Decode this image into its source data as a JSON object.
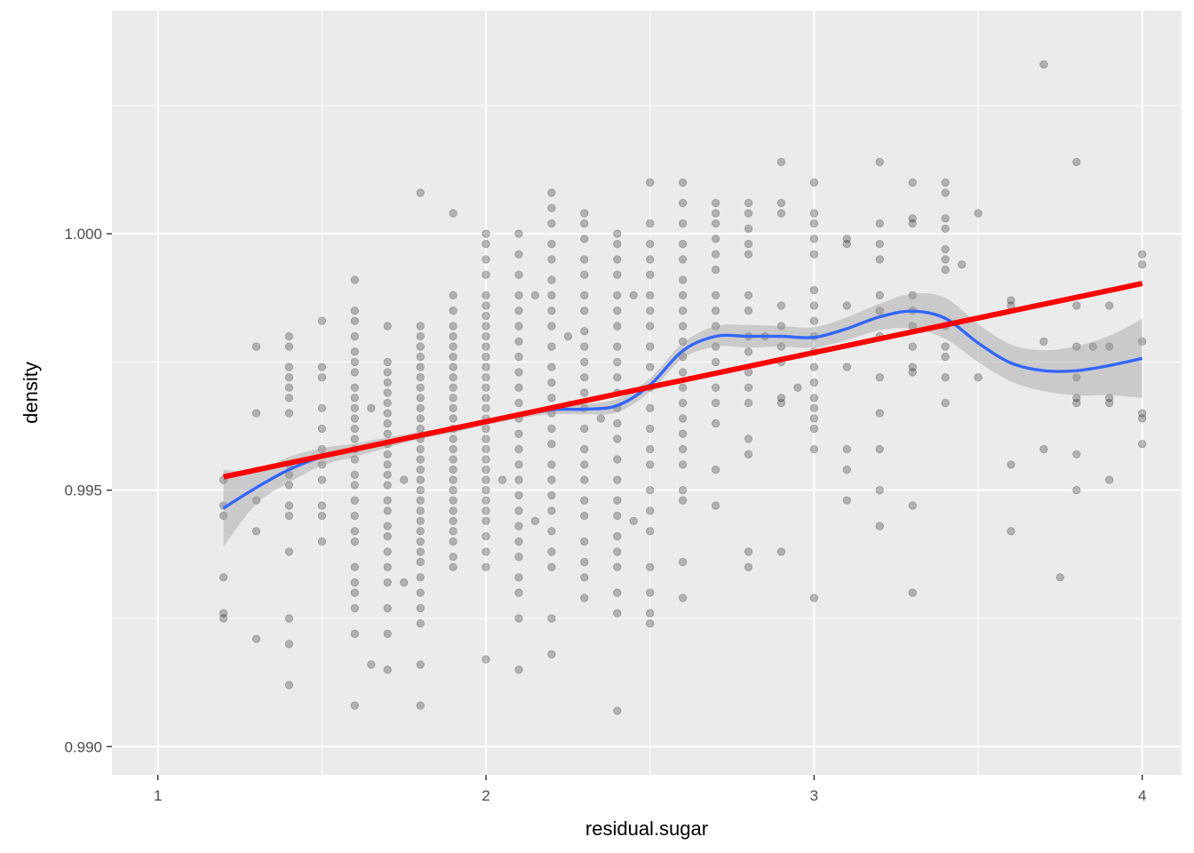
{
  "chart_data": {
    "type": "scatter",
    "title": "",
    "xlabel": "residual.sugar",
    "ylabel": "density",
    "xlim": [
      0.86,
      4.12
    ],
    "ylim": [
      0.98945,
      1.00435
    ],
    "x_ticks": [
      1,
      2,
      3,
      4
    ],
    "x_tick_labels": [
      "1",
      "2",
      "3",
      "4"
    ],
    "y_ticks": [
      0.99,
      0.995,
      1.0
    ],
    "y_tick_labels": [
      "0.990",
      "0.995",
      "1.000"
    ],
    "x_minor": [
      1.5,
      2.5,
      3.5
    ],
    "y_minor": [
      0.9925,
      0.9975,
      1.0025
    ],
    "grid": true,
    "legend": "none",
    "colors": {
      "panel": "#EBEBEB",
      "grid": "#FFFFFF",
      "points": "#000000",
      "loess": "#3366FF",
      "band": "#999999",
      "linear": "#FF0000"
    },
    "series": [
      {
        "kind": "points",
        "point_alpha": 0.25,
        "columns": [
          {
            "x": 1.2,
            "y": [
              0.9952,
              0.9947,
              0.9945,
              0.9933,
              0.9926,
              0.9925
            ]
          },
          {
            "x": 1.3,
            "y": [
              0.9978,
              0.9965,
              0.9948,
              0.9942,
              0.9921
            ]
          },
          {
            "x": 1.4,
            "y": [
              0.998,
              0.9978,
              0.9974,
              0.9972,
              0.997,
              0.9968,
              0.9965,
              0.9955,
              0.9953,
              0.9951,
              0.9947,
              0.9945,
              0.9938,
              0.9925,
              0.992,
              0.9912
            ]
          },
          {
            "x": 1.5,
            "y": [
              0.9983,
              0.9974,
              0.9972,
              0.9966,
              0.9962,
              0.9958,
              0.9955,
              0.9952,
              0.9947,
              0.9945,
              0.994
            ]
          },
          {
            "x": 1.6,
            "y": [
              0.9991,
              0.9985,
              0.9983,
              0.998,
              0.9977,
              0.9975,
              0.9973,
              0.997,
              0.9968,
              0.9966,
              0.9964,
              0.9962,
              0.996,
              0.9958,
              0.9956,
              0.9953,
              0.9951,
              0.9948,
              0.9945,
              0.9942,
              0.994,
              0.9935,
              0.9932,
              0.993,
              0.9927,
              0.9922,
              0.9908
            ]
          },
          {
            "x": 1.65,
            "y": [
              0.9966,
              0.9916
            ]
          },
          {
            "x": 1.7,
            "y": [
              0.9982,
              0.9975,
              0.9973,
              0.9971,
              0.9969,
              0.9967,
              0.9965,
              0.9963,
              0.9961,
              0.9959,
              0.9957,
              0.9955,
              0.9953,
              0.9951,
              0.9948,
              0.9946,
              0.9943,
              0.9941,
              0.9938,
              0.9935,
              0.9932,
              0.9927,
              0.9922,
              0.9915
            ]
          },
          {
            "x": 1.75,
            "y": [
              0.9952,
              0.9932
            ]
          },
          {
            "x": 1.8,
            "y": [
              1.0008,
              0.9982,
              0.998,
              0.9978,
              0.9976,
              0.9974,
              0.9972,
              0.997,
              0.9968,
              0.9966,
              0.9964,
              0.9962,
              0.996,
              0.9958,
              0.9956,
              0.9954,
              0.9952,
              0.995,
              0.9948,
              0.9946,
              0.9944,
              0.9942,
              0.994,
              0.9938,
              0.9936,
              0.9933,
              0.993,
              0.9927,
              0.9924,
              0.9916,
              0.9908
            ]
          },
          {
            "x": 1.9,
            "y": [
              1.0004,
              0.9988,
              0.9985,
              0.9982,
              0.998,
              0.9978,
              0.9976,
              0.9974,
              0.9972,
              0.997,
              0.9968,
              0.9966,
              0.9964,
              0.9962,
              0.996,
              0.9958,
              0.9956,
              0.9954,
              0.9952,
              0.995,
              0.9948,
              0.9946,
              0.9944,
              0.9942,
              0.994,
              0.9937,
              0.9935
            ]
          },
          {
            "x": 2.0,
            "y": [
              1.0,
              0.9998,
              0.9995,
              0.9992,
              0.9988,
              0.9986,
              0.9984,
              0.9982,
              0.998,
              0.9978,
              0.9976,
              0.9974,
              0.9972,
              0.997,
              0.9968,
              0.9966,
              0.9964,
              0.9962,
              0.996,
              0.9958,
              0.9956,
              0.9954,
              0.9952,
              0.995,
              0.9948,
              0.9946,
              0.9944,
              0.9941,
              0.9938,
              0.9935,
              0.9917
            ]
          },
          {
            "x": 2.05,
            "y": [
              0.9952
            ]
          },
          {
            "x": 2.1,
            "y": [
              1.0,
              0.9996,
              0.9992,
              0.9988,
              0.9985,
              0.9982,
              0.9979,
              0.9976,
              0.9973,
              0.997,
              0.9967,
              0.9964,
              0.9961,
              0.9958,
              0.9955,
              0.9952,
              0.9949,
              0.9946,
              0.9943,
              0.994,
              0.9937,
              0.9933,
              0.993,
              0.9925,
              0.9915
            ]
          },
          {
            "x": 2.15,
            "y": [
              0.9988,
              0.9944
            ]
          },
          {
            "x": 2.2,
            "y": [
              1.0008,
              1.0005,
              1.0002,
              0.9998,
              0.9995,
              0.9991,
              0.9988,
              0.9985,
              0.9982,
              0.9978,
              0.9974,
              0.9971,
              0.9968,
              0.9965,
              0.9962,
              0.9959,
              0.9955,
              0.9952,
              0.9949,
              0.9946,
              0.9942,
              0.9938,
              0.9935,
              0.9925,
              0.9918
            ]
          },
          {
            "x": 2.25,
            "y": [
              0.998
            ]
          },
          {
            "x": 2.3,
            "y": [
              1.0004,
              1.0002,
              0.9999,
              0.9995,
              0.9992,
              0.9988,
              0.9985,
              0.9981,
              0.9978,
              0.9975,
              0.9972,
              0.9969,
              0.9966,
              0.9962,
              0.9958,
              0.9955,
              0.9952,
              0.9948,
              0.9945,
              0.994,
              0.9936,
              0.9933,
              0.9929
            ]
          },
          {
            "x": 2.35,
            "y": [
              0.9964
            ]
          },
          {
            "x": 2.4,
            "y": [
              1.0,
              0.9998,
              0.9995,
              0.9992,
              0.9988,
              0.9985,
              0.9982,
              0.9978,
              0.9975,
              0.9972,
              0.9969,
              0.9966,
              0.9963,
              0.996,
              0.9956,
              0.9952,
              0.9948,
              0.9945,
              0.9941,
              0.9938,
              0.9935,
              0.993,
              0.9926,
              0.9907
            ]
          },
          {
            "x": 2.45,
            "y": [
              0.9988,
              0.9944
            ]
          },
          {
            "x": 2.5,
            "y": [
              1.001,
              1.0002,
              0.9998,
              0.9995,
              0.9992,
              0.9988,
              0.9985,
              0.9982,
              0.9978,
              0.9974,
              0.997,
              0.9966,
              0.9962,
              0.9958,
              0.9955,
              0.995,
              0.9946,
              0.9942,
              0.9935,
              0.993,
              0.9926,
              0.9924
            ]
          },
          {
            "x": 2.6,
            "y": [
              1.001,
              1.0006,
              1.0002,
              0.9998,
              0.9995,
              0.9991,
              0.9988,
              0.9985,
              0.9982,
              0.9979,
              0.9976,
              0.9973,
              0.997,
              0.9967,
              0.9964,
              0.9961,
              0.9958,
              0.9955,
              0.995,
              0.9948,
              0.9936,
              0.9929
            ]
          },
          {
            "x": 2.7,
            "y": [
              1.0006,
              1.0004,
              1.0002,
              0.9999,
              0.9996,
              0.9993,
              0.9988,
              0.9985,
              0.9982,
              0.9978,
              0.9975,
              0.997,
              0.9967,
              0.9963,
              0.9954,
              0.9947
            ]
          },
          {
            "x": 2.8,
            "y": [
              1.0006,
              1.0004,
              1.0001,
              0.9998,
              0.9996,
              0.9988,
              0.9985,
              0.998,
              0.9977,
              0.9973,
              0.997,
              0.9967,
              0.996,
              0.9957,
              0.9938,
              0.9935
            ]
          },
          {
            "x": 2.85,
            "y": [
              0.998
            ]
          },
          {
            "x": 2.9,
            "y": [
              1.0014,
              1.0006,
              1.0004,
              0.9986,
              0.9982,
              0.9978,
              0.9975,
              0.9968,
              0.9967,
              0.9938
            ]
          },
          {
            "x": 2.95,
            "y": [
              0.997
            ]
          },
          {
            "x": 3.0,
            "y": [
              1.001,
              1.0004,
              1.0002,
              0.9999,
              0.9996,
              0.9989,
              0.9986,
              0.9983,
              0.998,
              0.9977,
              0.9974,
              0.9971,
              0.9968,
              0.9966,
              0.9964,
              0.9962,
              0.9958,
              0.9929
            ]
          },
          {
            "x": 3.1,
            "y": [
              0.9999,
              0.9998,
              0.9986,
              0.9974,
              0.9958,
              0.9954,
              0.9948
            ]
          },
          {
            "x": 3.2,
            "y": [
              1.0014,
              1.0002,
              0.9998,
              0.9995,
              0.9988,
              0.9985,
              0.998,
              0.9972,
              0.9965,
              0.9958,
              0.995,
              0.9943
            ]
          },
          {
            "x": 3.3,
            "y": [
              1.001,
              1.0003,
              1.0002,
              0.9988,
              0.9985,
              0.9982,
              0.9978,
              0.9974,
              0.9973,
              0.9947,
              0.993
            ]
          },
          {
            "x": 3.4,
            "y": [
              1.001,
              1.0008,
              1.0003,
              1.0001,
              0.9997,
              0.9995,
              0.9993,
              0.9982,
              0.9978,
              0.9976,
              0.9972,
              0.9967
            ]
          },
          {
            "x": 3.45,
            "y": [
              0.9994
            ]
          },
          {
            "x": 3.5,
            "y": [
              1.0004,
              0.9972
            ]
          },
          {
            "x": 3.6,
            "y": [
              0.9987,
              0.9986,
              0.9955,
              0.9942
            ]
          },
          {
            "x": 3.7,
            "y": [
              1.0033,
              0.9979,
              0.9958
            ]
          },
          {
            "x": 3.75,
            "y": [
              0.9933
            ]
          },
          {
            "x": 3.8,
            "y": [
              1.0014,
              0.9986,
              0.9978,
              0.9972,
              0.9968,
              0.9967,
              0.9957,
              0.995
            ]
          },
          {
            "x": 3.85,
            "y": [
              0.9978
            ]
          },
          {
            "x": 3.9,
            "y": [
              0.9986,
              0.9978,
              0.9968,
              0.9967,
              0.9952
            ]
          },
          {
            "x": 4.0,
            "y": [
              0.9996,
              0.9994,
              0.9979,
              0.9965,
              0.9964,
              0.9959
            ]
          }
        ]
      },
      {
        "kind": "loess",
        "x": [
          1.2,
          1.3,
          1.4,
          1.5,
          1.6,
          1.7,
          1.8,
          1.9,
          2.0,
          2.1,
          2.2,
          2.3,
          2.4,
          2.5,
          2.6,
          2.7,
          2.8,
          2.9,
          3.0,
          3.1,
          3.2,
          3.3,
          3.4,
          3.5,
          3.6,
          3.7,
          3.8,
          3.9,
          4.0
        ],
        "y": [
          0.99465,
          0.99505,
          0.9954,
          0.99565,
          0.99578,
          0.99593,
          0.99607,
          0.99618,
          0.99632,
          0.99645,
          0.99657,
          0.99658,
          0.99665,
          0.99705,
          0.99772,
          0.998,
          0.998,
          0.998,
          0.99798,
          0.99815,
          0.99838,
          0.99849,
          0.99835,
          0.99787,
          0.99748,
          0.99733,
          0.99733,
          0.99743,
          0.99757
        ],
        "ci_lower": [
          0.9939,
          0.99473,
          0.99515,
          0.99548,
          0.99565,
          0.99583,
          0.996,
          0.99612,
          0.99627,
          0.9964,
          0.99648,
          0.99648,
          0.99652,
          0.99692,
          0.99757,
          0.9978,
          0.99778,
          0.9978,
          0.99778,
          0.99793,
          0.99812,
          0.99815,
          0.99795,
          0.9975,
          0.99712,
          0.99693,
          0.99685,
          0.99685,
          0.9968
        ],
        "ci_upper": [
          0.9954,
          0.99537,
          0.99565,
          0.99582,
          0.99591,
          0.99603,
          0.99614,
          0.99624,
          0.99637,
          0.9965,
          0.99666,
          0.99668,
          0.99678,
          0.99718,
          0.99787,
          0.9982,
          0.99822,
          0.9982,
          0.99818,
          0.99837,
          0.99864,
          0.99883,
          0.99875,
          0.99824,
          0.99784,
          0.99773,
          0.99781,
          0.99801,
          0.99834
        ]
      },
      {
        "kind": "linear",
        "x": [
          1.2,
          4.0
        ],
        "y": [
          0.99526,
          0.99903
        ]
      }
    ]
  }
}
